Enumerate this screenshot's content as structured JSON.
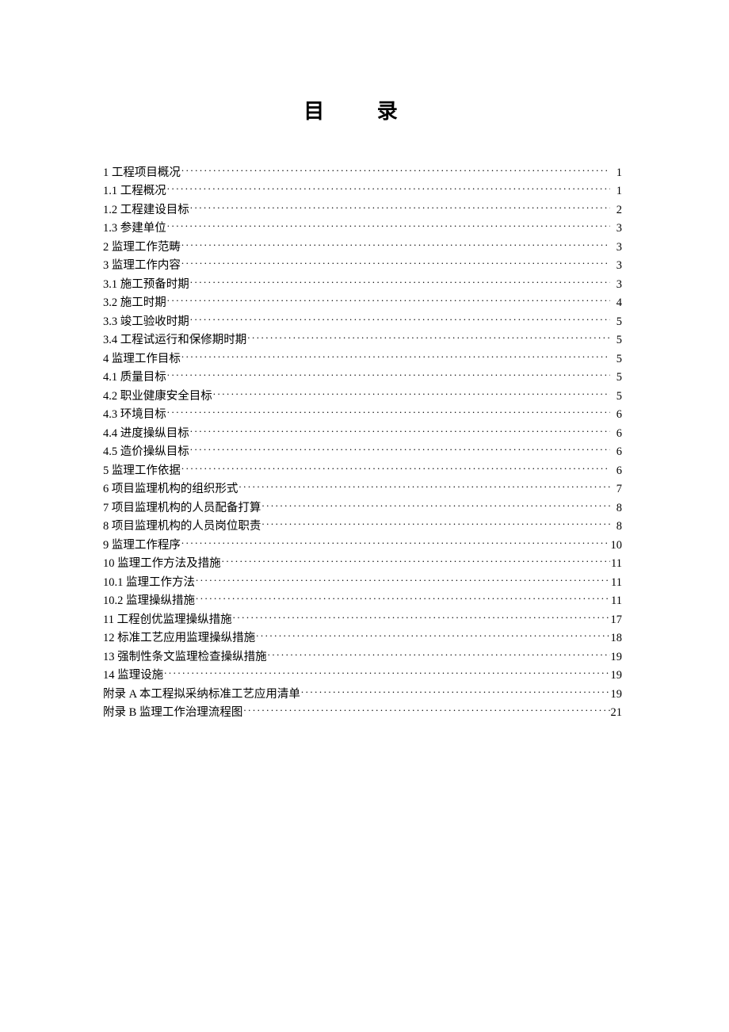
{
  "document": {
    "title": "目 录",
    "text_color": "#000000",
    "background_color": "#ffffff",
    "title_fontsize": 26,
    "entry_fontsize": 14.5,
    "font_family": "SimSun",
    "toc_entries": [
      {
        "label": "1 工程项目概况",
        "page": "1"
      },
      {
        "label": "1.1 工程概况",
        "page": "1"
      },
      {
        "label": "1.2 工程建设目标",
        "page": "2"
      },
      {
        "label": "1.3 参建单位",
        "page": "3"
      },
      {
        "label": "2 监理工作范畴",
        "page": "3"
      },
      {
        "label": "3 监理工作内容",
        "page": "3"
      },
      {
        "label": "3.1 施工预备时期",
        "page": "3"
      },
      {
        "label": "3.2 施工时期",
        "page": "4"
      },
      {
        "label": "3.3 竣工验收时期",
        "page": "5"
      },
      {
        "label": "3.4 工程试运行和保修期时期",
        "page": "5"
      },
      {
        "label": "4 监理工作目标",
        "page": "5"
      },
      {
        "label": "4.1 质量目标",
        "page": "5"
      },
      {
        "label": "4.2 职业健康安全目标",
        "page": "5"
      },
      {
        "label": "4.3 环境目标",
        "page": "6"
      },
      {
        "label": "4.4 进度操纵目标",
        "page": "6"
      },
      {
        "label": "4.5 造价操纵目标",
        "page": "6"
      },
      {
        "label": "5 监理工作依据",
        "page": "6"
      },
      {
        "label": "6 项目监理机构的组织形式",
        "page": "7"
      },
      {
        "label": "7 项目监理机构的人员配备打算",
        "page": "8"
      },
      {
        "label": "8 项目监理机构的人员岗位职责",
        "page": "8"
      },
      {
        "label": "9 监理工作程序",
        "page": "10"
      },
      {
        "label": "10 监理工作方法及措施",
        "page": "11"
      },
      {
        "label": "10.1 监理工作方法",
        "page": "11"
      },
      {
        "label": "10.2 监理操纵措施",
        "page": "11"
      },
      {
        "label": "11 工程创优监理操纵措施",
        "page": "17"
      },
      {
        "label": "12 标准工艺应用监理操纵措施",
        "page": "18"
      },
      {
        "label": "13 强制性条文监理检查操纵措施",
        "page": "19"
      },
      {
        "label": "14 监理设施",
        "page": "19"
      },
      {
        "label": "附录 A 本工程拟采纳标准工艺应用清单",
        "page": "19"
      },
      {
        "label": "附录 B 监理工作治理流程图",
        "page": "21"
      }
    ]
  }
}
